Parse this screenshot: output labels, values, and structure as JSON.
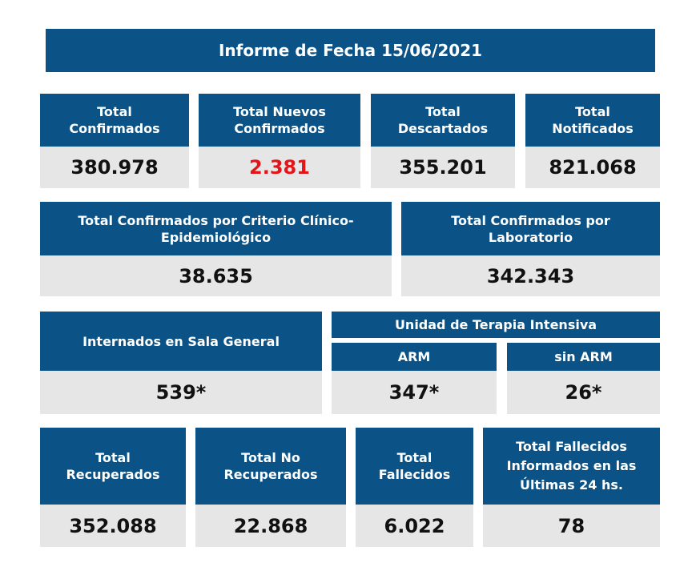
{
  "title": "Informe de Fecha 15/06/2021",
  "row1": [
    {
      "label": "Total\nConfirmados",
      "value": "380.978"
    },
    {
      "label": "Total Nuevos\nConfirmados",
      "value": "2.381"
    },
    {
      "label": "Total\nDescartados",
      "value": "355.201"
    },
    {
      "label": "Total\nNotificados",
      "value": "821.068"
    }
  ],
  "row2": [
    {
      "label": "Total Confirmados por Criterio Clínico-\nEpidemiológico",
      "value": "38.635"
    },
    {
      "label": "Total Confirmados por\nLaboratorio",
      "value": "342.343"
    }
  ],
  "row3": {
    "sala": {
      "label": "Internados en Sala General",
      "value": "539*"
    },
    "uti": {
      "label": "Unidad de Terapia Intensiva",
      "arm": {
        "label": "ARM",
        "value": "347*"
      },
      "sin_arm": {
        "label": "sin ARM",
        "value": "26*"
      }
    }
  },
  "row4": [
    {
      "label": "Total\nRecuperados",
      "value": "352.088"
    },
    {
      "label": "Total No\nRecuperados",
      "value": "22.868"
    },
    {
      "label": "Total\nFallecidos",
      "value": "6.022"
    },
    {
      "label": "Total Fallecidos\nInformados en las\nÚltimas 24 hs.",
      "value": "78"
    }
  ],
  "colors": {
    "header": "#0b5286",
    "value_bg": "#e6e6e6",
    "highlight": "#e0161b"
  }
}
